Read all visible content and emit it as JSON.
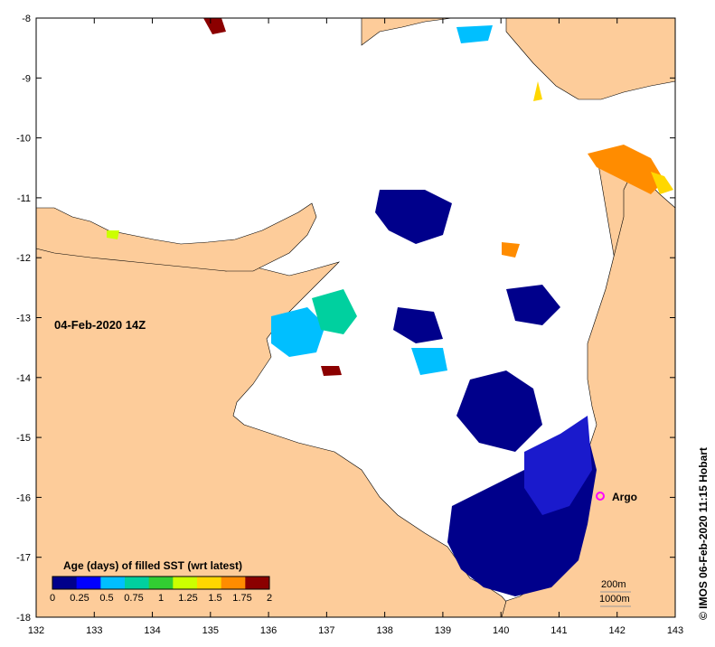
{
  "map": {
    "date_label": "04-Feb-2020 14Z",
    "credit": "© IMOS 06-Feb-2020 11:15 Hobart",
    "argo_label": "Argo",
    "argo_marker_color": "#ff00ff",
    "land_color": "#fdcc9a",
    "ocean_color": "#ffffff",
    "x_axis": {
      "ticks": [
        132,
        133,
        134,
        135,
        136,
        137,
        138,
        139,
        140,
        141,
        142,
        143
      ]
    },
    "y_axis": {
      "ticks": [
        -8,
        -9,
        -10,
        -11,
        -12,
        -13,
        -14,
        -15,
        -16,
        -17,
        -18
      ]
    },
    "bathymetry_legend": [
      "200m",
      "1000m"
    ],
    "colorbar": {
      "title": "Age (days) of filled SST (wrt latest)",
      "tick_labels": [
        "0",
        "0.25",
        "0.5",
        "0.75",
        "1",
        "1.25",
        "1.5",
        "1.75",
        "2"
      ],
      "colors": [
        "#00008b",
        "#0000ff",
        "#00bfff",
        "#00d09f",
        "#32cd32",
        "#ccff00",
        "#ffd700",
        "#ff8c00",
        "#8b0000"
      ]
    }
  }
}
